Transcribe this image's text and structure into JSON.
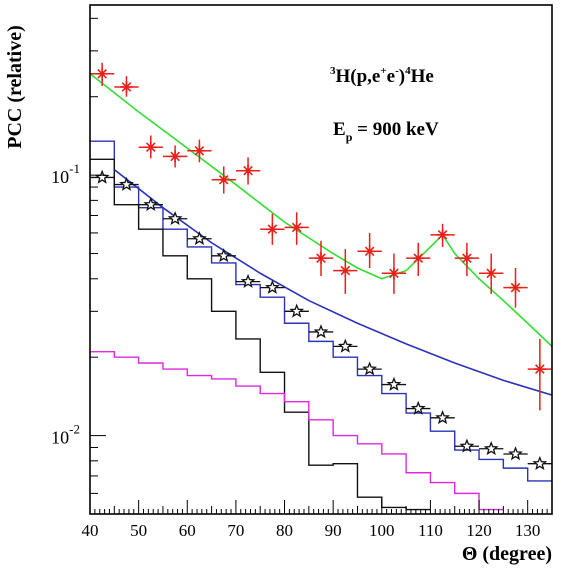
{
  "chart_data": {
    "type": "scatter",
    "ylabel": "PCC (relative)",
    "xlabel": "Θ (degree)",
    "xlim": [
      40,
      135
    ],
    "ylim": [
      0.005,
      0.45
    ],
    "log_y": true,
    "x_tick_labels": [
      "40",
      "50",
      "60",
      "70",
      "80",
      "90",
      "100",
      "110",
      "120",
      "130"
    ],
    "y_tick_labels": [
      {
        "value": 0.1,
        "base": "10",
        "exp": "-1"
      },
      {
        "value": 0.01,
        "base": "10",
        "exp": "-2"
      }
    ],
    "annotations": {
      "reaction": {
        "pre": "3",
        "a": "H(p,e",
        "b": "+",
        "c": "e",
        "d": "-",
        "e": ")",
        "f": "4",
        "g": "He"
      },
      "energy": {
        "a": "E",
        "b": "p",
        "c": " = 900 keV"
      }
    },
    "colors": {
      "data_red": "#e8201a",
      "green": "#33dd33",
      "blue": "#2a32b8",
      "black": "#111111",
      "magenta": "#e028e0"
    },
    "series": [
      {
        "marker": "star-red",
        "color": "#e8201a",
        "points": [
          {
            "x": 42.5,
            "y": 0.245,
            "ylo": 0.22,
            "yhi": 0.27
          },
          {
            "x": 47.5,
            "y": 0.218,
            "ylo": 0.2,
            "yhi": 0.24
          },
          {
            "x": 52.5,
            "y": 0.128,
            "ylo": 0.116,
            "yhi": 0.142
          },
          {
            "x": 57.5,
            "y": 0.118,
            "ylo": 0.107,
            "yhi": 0.13
          },
          {
            "x": 62.5,
            "y": 0.124,
            "ylo": 0.112,
            "yhi": 0.137
          },
          {
            "x": 67.5,
            "y": 0.096,
            "ylo": 0.085,
            "yhi": 0.108
          },
          {
            "x": 72.5,
            "y": 0.104,
            "ylo": 0.092,
            "yhi": 0.117
          },
          {
            "x": 77.5,
            "y": 0.062,
            "ylo": 0.054,
            "yhi": 0.071
          },
          {
            "x": 82.5,
            "y": 0.063,
            "ylo": 0.054,
            "yhi": 0.072
          },
          {
            "x": 87.5,
            "y": 0.048,
            "ylo": 0.041,
            "yhi": 0.056
          },
          {
            "x": 92.5,
            "y": 0.043,
            "ylo": 0.035,
            "yhi": 0.052
          },
          {
            "x": 97.5,
            "y": 0.051,
            "ylo": 0.044,
            "yhi": 0.06
          },
          {
            "x": 102.5,
            "y": 0.042,
            "ylo": 0.035,
            "yhi": 0.05
          },
          {
            "x": 107.5,
            "y": 0.048,
            "ylo": 0.041,
            "yhi": 0.055
          },
          {
            "x": 112.5,
            "y": 0.059,
            "ylo": 0.053,
            "yhi": 0.065
          },
          {
            "x": 117.5,
            "y": 0.048,
            "ylo": 0.041,
            "yhi": 0.055
          },
          {
            "x": 122.5,
            "y": 0.042,
            "ylo": 0.035,
            "yhi": 0.05
          },
          {
            "x": 127.5,
            "y": 0.037,
            "ylo": 0.031,
            "yhi": 0.044
          },
          {
            "x": 132.5,
            "y": 0.018,
            "ylo": 0.0125,
            "yhi": 0.0235
          }
        ]
      },
      {
        "marker": "star-open-black",
        "color": "#111111",
        "points": [
          {
            "x": 42.5,
            "y": 0.098
          },
          {
            "x": 47.5,
            "y": 0.092
          },
          {
            "x": 52.5,
            "y": 0.077
          },
          {
            "x": 57.5,
            "y": 0.068
          },
          {
            "x": 62.5,
            "y": 0.057
          },
          {
            "x": 67.5,
            "y": 0.049
          },
          {
            "x": 72.5,
            "y": 0.039
          },
          {
            "x": 77.5,
            "y": 0.037
          },
          {
            "x": 82.5,
            "y": 0.03
          },
          {
            "x": 87.5,
            "y": 0.025
          },
          {
            "x": 92.5,
            "y": 0.022
          },
          {
            "x": 97.5,
            "y": 0.018
          },
          {
            "x": 102.5,
            "y": 0.0157
          },
          {
            "x": 107.5,
            "y": 0.0127
          },
          {
            "x": 112.5,
            "y": 0.0117
          },
          {
            "x": 117.5,
            "y": 0.0091
          },
          {
            "x": 122.5,
            "y": 0.0089
          },
          {
            "x": 127.5,
            "y": 0.0085
          },
          {
            "x": 132.5,
            "y": 0.0078
          }
        ]
      },
      {
        "line": "green",
        "color": "#33dd33",
        "x": [
          40,
          50,
          60,
          70,
          80,
          90,
          95,
          100,
          105,
          110,
          112.5,
          115,
          120,
          125,
          130,
          135
        ],
        "values": [
          0.245,
          0.175,
          0.127,
          0.092,
          0.066,
          0.05,
          0.044,
          0.04,
          0.043,
          0.053,
          0.059,
          0.05,
          0.04,
          0.033,
          0.027,
          0.022
        ]
      },
      {
        "line": "blue",
        "color": "#2a32b8",
        "x": [
          45,
          55,
          65,
          75,
          85,
          95,
          105,
          115,
          125,
          135
        ],
        "values": [
          0.105,
          0.075,
          0.055,
          0.042,
          0.033,
          0.027,
          0.0225,
          0.019,
          0.0163,
          0.0143
        ]
      },
      {
        "histogram": "blue",
        "color": "#2a32b8",
        "bin_edges": [
          40,
          45,
          50,
          55,
          60,
          65,
          70,
          75,
          80,
          85,
          90,
          95,
          100,
          105,
          110,
          115,
          120,
          125,
          130,
          135
        ],
        "values": [
          0.135,
          0.09,
          0.075,
          0.062,
          0.053,
          0.046,
          0.038,
          0.034,
          0.027,
          0.023,
          0.02,
          0.017,
          0.0145,
          0.0122,
          0.0104,
          0.0088,
          0.0081,
          0.0075,
          0.0067
        ]
      },
      {
        "histogram": "black",
        "color": "#111111",
        "bin_edges": [
          40,
          45,
          50,
          55,
          60,
          65,
          70,
          75,
          80,
          85,
          90,
          95,
          100,
          105,
          110
        ],
        "values": [
          0.115,
          0.077,
          0.062,
          0.049,
          0.04,
          0.03,
          0.0235,
          0.0175,
          0.0123,
          0.0077,
          0.0078,
          0.0058,
          0.0053,
          0.0052
        ]
      },
      {
        "histogram": "magenta",
        "color": "#e028e0",
        "bin_edges": [
          40,
          45,
          50,
          55,
          60,
          65,
          70,
          75,
          80,
          85,
          90,
          95,
          100,
          105,
          110,
          115,
          120,
          125
        ],
        "values": [
          0.021,
          0.02,
          0.019,
          0.018,
          0.017,
          0.0165,
          0.0155,
          0.0145,
          0.0135,
          0.0115,
          0.01,
          0.0093,
          0.0085,
          0.0072,
          0.0066,
          0.006,
          0.0052
        ]
      }
    ]
  }
}
